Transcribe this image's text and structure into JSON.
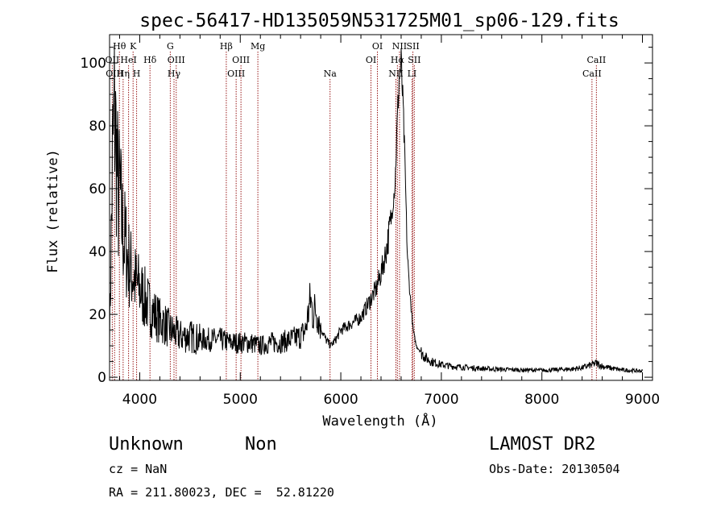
{
  "chart_data": {
    "type": "line",
    "title": "spec-56417-HD135059N531725M01_sp06-129.fits",
    "xlabel": "Wavelength (Å)",
    "ylabel": "Flux (relative)",
    "xlim": [
      3700,
      9100
    ],
    "ylim": [
      -1,
      109
    ],
    "xticks": [
      4000,
      5000,
      6000,
      7000,
      8000,
      9000
    ],
    "yticks": [
      0,
      20,
      40,
      60,
      80,
      100
    ],
    "grid": false,
    "series": [
      {
        "x": [
          3700,
          3730,
          3750,
          3770,
          3790,
          3800,
          3820,
          3840,
          3860,
          3880,
          3900,
          3930,
          3960,
          4000,
          4050,
          4100,
          4150,
          4200,
          4250,
          4300,
          4350,
          4400,
          4500,
          4600,
          4700,
          4800,
          4900,
          5000,
          5100,
          5200,
          5300,
          5400,
          5500,
          5600,
          5650,
          5700,
          5720,
          5750,
          5800,
          5850,
          5900,
          5950,
          6000,
          6100,
          6200,
          6250,
          6300,
          6350,
          6400,
          6450,
          6500,
          6540,
          6560,
          6580,
          6600,
          6620,
          6640,
          6660,
          6680,
          6700,
          6720,
          6750,
          6800,
          6850,
          6900,
          6950,
          7000,
          7100,
          7200,
          7300,
          7400,
          7500,
          7600,
          7700,
          7800,
          7900,
          8000,
          8100,
          8200,
          8300,
          8400,
          8500,
          8540,
          8600,
          8700,
          8800,
          8900,
          9000
        ],
        "y": [
          12,
          70,
          85,
          70,
          55,
          60,
          50,
          45,
          42,
          38,
          35,
          33,
          30,
          28,
          25,
          22,
          20,
          18,
          17,
          15,
          14,
          13,
          13,
          12,
          12,
          12,
          11,
          11,
          11,
          10,
          11,
          11,
          12,
          13,
          15,
          25,
          20,
          22,
          16,
          12,
          10,
          12,
          15,
          17,
          19,
          22,
          25,
          28,
          33,
          40,
          50,
          62,
          80,
          95,
          100,
          85,
          65,
          40,
          30,
          22,
          15,
          10,
          8,
          6,
          5,
          4.5,
          4,
          3.5,
          3.2,
          3,
          2.8,
          2.6,
          2.5,
          2.4,
          2.3,
          2.3,
          2.2,
          2.3,
          2.5,
          2.6,
          3,
          4,
          4.5,
          3.5,
          2.8,
          2.3,
          2.1,
          2
        ]
      }
    ],
    "line_markers": [
      {
        "label": "Hθ",
        "wl": 3798,
        "row": 0
      },
      {
        "label": "OII",
        "wl": 3727,
        "row": 1
      },
      {
        "label": "OIII",
        "wl": 3750,
        "row": 2
      },
      {
        "label": "K",
        "wl": 3934,
        "row": 0
      },
      {
        "label": "HeI",
        "wl": 3889,
        "row": 1
      },
      {
        "label": "Hη",
        "wl": 3835,
        "row": 2
      },
      {
        "label": "H",
        "wl": 3969,
        "row": 2
      },
      {
        "label": "Hδ",
        "wl": 4102,
        "row": 1
      },
      {
        "label": "G",
        "wl": 4304,
        "row": 0
      },
      {
        "label": "OIII",
        "wl": 4363,
        "row": 1
      },
      {
        "label": "Hγ",
        "wl": 4341,
        "row": 2
      },
      {
        "label": "Hβ",
        "wl": 4861,
        "row": 0
      },
      {
        "label": "Mg",
        "wl": 5175,
        "row": 0
      },
      {
        "label": "OIII",
        "wl": 5007,
        "row": 1
      },
      {
        "label": "OIII",
        "wl": 4959,
        "row": 2
      },
      {
        "label": "Na",
        "wl": 5893,
        "row": 2
      },
      {
        "label": "OI",
        "wl": 6364,
        "row": 0
      },
      {
        "label": "OI",
        "wl": 6300,
        "row": 1
      },
      {
        "label": "NII",
        "wl": 6584,
        "row": 0
      },
      {
        "label": "SII",
        "wl": 6717,
        "row": 0
      },
      {
        "label": "Hα",
        "wl": 6563,
        "row": 1
      },
      {
        "label": "SII",
        "wl": 6731,
        "row": 1
      },
      {
        "label": "NII",
        "wl": 6548,
        "row": 2
      },
      {
        "label": "LI",
        "wl": 6708,
        "row": 2
      },
      {
        "label": "CaII",
        "wl": 8542,
        "row": 1
      },
      {
        "label": "CaII",
        "wl": 8498,
        "row": 2
      }
    ],
    "marker_color": "#9a1b1b"
  },
  "info": {
    "class": "Unknown",
    "subclass": "Non",
    "survey": "LAMOST DR2",
    "cz": "cz = NaN",
    "obs_date": "Obs-Date: 20130504",
    "coords": "RA = 211.80023, DEC =  52.81220"
  }
}
